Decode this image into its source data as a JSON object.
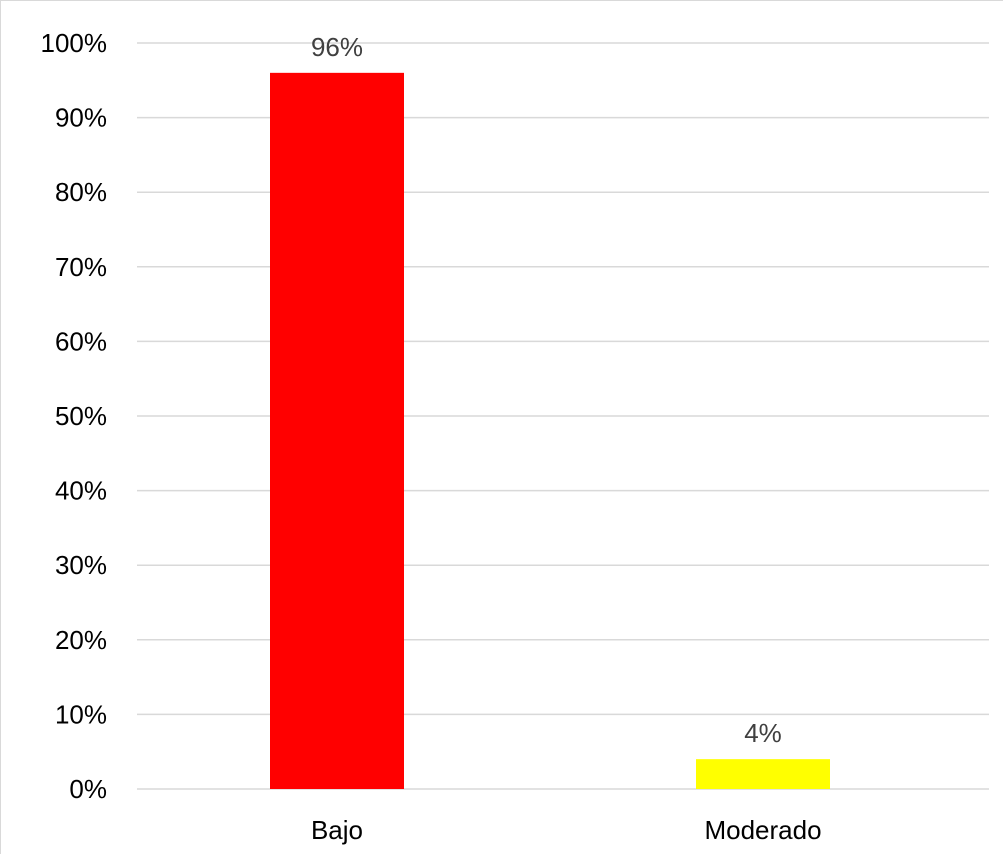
{
  "chart_data": {
    "type": "bar",
    "categories": [
      "Bajo",
      "Moderado"
    ],
    "values": [
      96,
      4
    ],
    "data_labels": [
      "96%",
      "4%"
    ],
    "bar_colors": [
      "#ff0000",
      "#ffff00"
    ],
    "ylim": [
      0,
      100
    ],
    "yticks": [
      0,
      10,
      20,
      30,
      40,
      50,
      60,
      70,
      80,
      90,
      100
    ],
    "ytick_labels": [
      "0%",
      "10%",
      "20%",
      "30%",
      "40%",
      "50%",
      "60%",
      "70%",
      "80%",
      "90%",
      "100%"
    ],
    "grid": true,
    "gridline_color": "#d9d9d9",
    "legend": "none",
    "title": "",
    "xlabel": "",
    "ylabel": ""
  }
}
